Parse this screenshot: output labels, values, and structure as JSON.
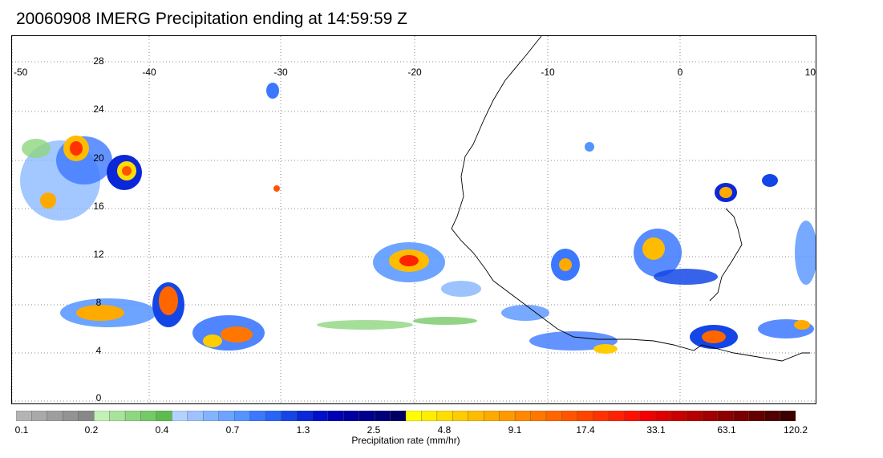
{
  "title": "20060908 IMERG Precipitation ending at 14:59:59 Z",
  "map": {
    "lon_ticks": [
      "-50",
      "-40",
      "-30",
      "-20",
      "-10",
      "0",
      "10"
    ],
    "lat_ticks": [
      "28",
      "24",
      "20",
      "16",
      "12",
      "8",
      "4",
      "0"
    ],
    "lon_range": [
      -50,
      10
    ],
    "lat_range": [
      -0.5,
      29.5
    ],
    "gridlines": "dotted"
  },
  "colorbar": {
    "title": "Precipitation rate (mm/hr)",
    "tick_labels": [
      "0.1",
      "0.2",
      "0.4",
      "0.7",
      "1.3",
      "2.5",
      "4.8",
      "9.1",
      "17.4",
      "33.1",
      "63.1",
      "120.2"
    ],
    "colors": [
      "#b4b4b4",
      "#a9a9a9",
      "#9e9e9e",
      "#939393",
      "#888888",
      "#c3f0b4",
      "#a8e39a",
      "#8fd680",
      "#75c967",
      "#5cbc4e",
      "#b4d2ff",
      "#9cc3ff",
      "#84b4ff",
      "#6ca4ff",
      "#5494ff",
      "#3c78ff",
      "#2864f5",
      "#1446e6",
      "#0a28d7",
      "#0010c8",
      "#0000b4",
      "#0000a0",
      "#00008c",
      "#000078",
      "#000064",
      "#ffff00",
      "#ffee00",
      "#ffdd00",
      "#ffcc00",
      "#ffbb00",
      "#ffaa00",
      "#ff9900",
      "#ff8800",
      "#ff7700",
      "#ff6600",
      "#ff5500",
      "#ff4400",
      "#ff3300",
      "#ff2200",
      "#ff1100",
      "#f00000",
      "#dc0000",
      "#c80000",
      "#b40000",
      "#a00000",
      "#8c0000",
      "#780000",
      "#640000",
      "#500000",
      "#3c0000"
    ]
  }
}
